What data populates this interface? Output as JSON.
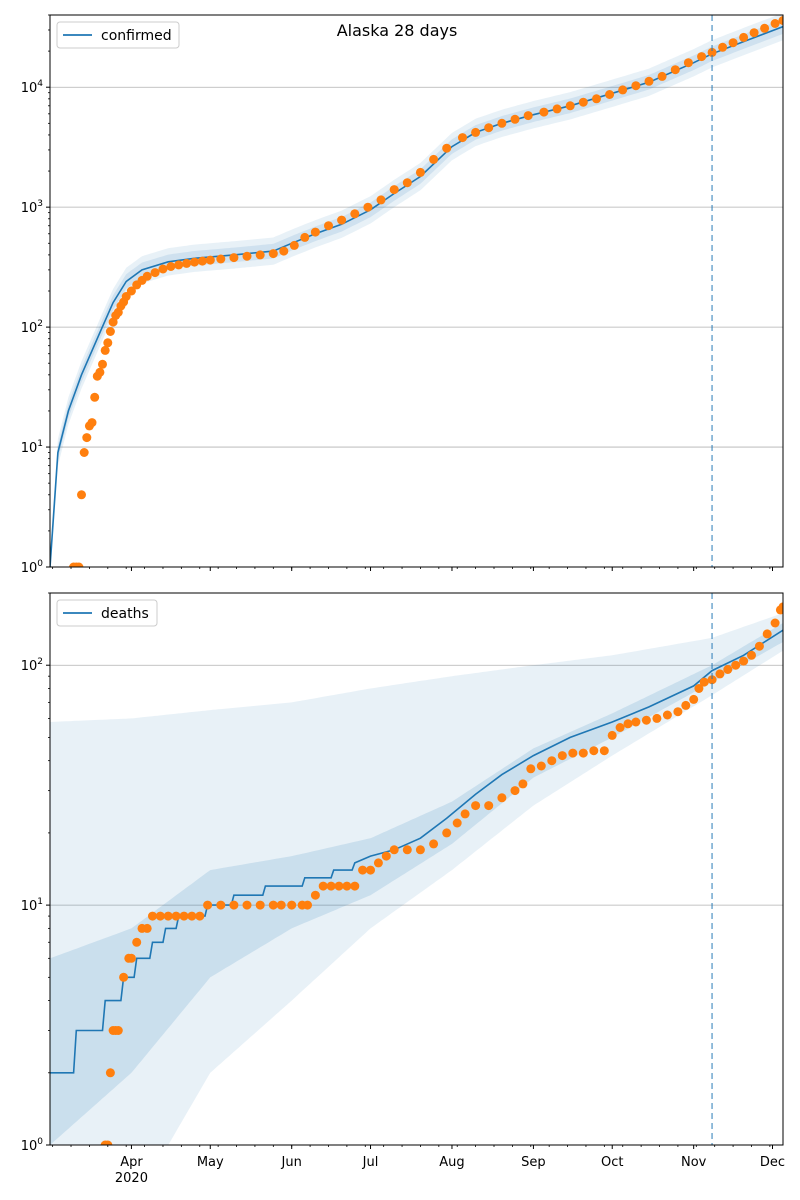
{
  "chart_data": [
    {
      "type": "scatter",
      "title": "Alaska 28 days",
      "legend": {
        "label": "confirmed",
        "placement": "top-left"
      },
      "yscale": "log",
      "ylim": [
        1,
        40000
      ],
      "xlim": [
        "2020-03-01",
        "2020-12-05"
      ],
      "grid": "y-major",
      "y_ticks": [
        {
          "v": 1,
          "b": "10",
          "e": "0"
        },
        {
          "v": 10,
          "b": "10",
          "e": "1"
        },
        {
          "v": 100,
          "b": "10",
          "e": "2"
        },
        {
          "v": 1000,
          "b": "10",
          "e": "3"
        },
        {
          "v": 10000,
          "b": "10",
          "e": "4"
        }
      ],
      "forecast_start": "2020-11-08",
      "model": {
        "median": [
          [
            "2020-03-01",
            1
          ],
          [
            "2020-03-04",
            9
          ],
          [
            "2020-03-08",
            20
          ],
          [
            "2020-03-13",
            40
          ],
          [
            "2020-03-20",
            90
          ],
          [
            "2020-03-25",
            160
          ],
          [
            "2020-03-30",
            240
          ],
          [
            "2020-04-05",
            300
          ],
          [
            "2020-04-15",
            350
          ],
          [
            "2020-04-25",
            375
          ],
          [
            "2020-05-10",
            400
          ],
          [
            "2020-05-25",
            430
          ],
          [
            "2020-06-01",
            500
          ],
          [
            "2020-06-10",
            600
          ],
          [
            "2020-06-20",
            720
          ],
          [
            "2020-07-01",
            950
          ],
          [
            "2020-07-10",
            1300
          ],
          [
            "2020-07-20",
            1800
          ],
          [
            "2020-08-01",
            3200
          ],
          [
            "2020-08-10",
            4200
          ],
          [
            "2020-08-20",
            5000
          ],
          [
            "2020-09-01",
            5900
          ],
          [
            "2020-09-15",
            7000
          ],
          [
            "2020-10-01",
            8900
          ],
          [
            "2020-10-15",
            11000
          ],
          [
            "2020-11-01",
            16000
          ],
          [
            "2020-11-08",
            19000
          ],
          [
            "2020-11-20",
            24000
          ],
          [
            "2020-12-05",
            32000
          ]
        ],
        "band_inner_factor": 1.15,
        "band_outer_factor": 1.3
      },
      "observed": [
        [
          "2020-03-10",
          1
        ],
        [
          "2020-03-11",
          1
        ],
        [
          "2020-03-12",
          1
        ],
        [
          "2020-03-13",
          4
        ],
        [
          "2020-03-14",
          9
        ],
        [
          "2020-03-15",
          12
        ],
        [
          "2020-03-16",
          15
        ],
        [
          "2020-03-17",
          16
        ],
        [
          "2020-03-18",
          26
        ],
        [
          "2020-03-19",
          39
        ],
        [
          "2020-03-20",
          42
        ],
        [
          "2020-03-21",
          49
        ],
        [
          "2020-03-22",
          64
        ],
        [
          "2020-03-23",
          74
        ],
        [
          "2020-03-24",
          92
        ],
        [
          "2020-03-25",
          110
        ],
        [
          "2020-03-26",
          125
        ],
        [
          "2020-03-27",
          133
        ],
        [
          "2020-03-28",
          150
        ],
        [
          "2020-03-29",
          162
        ],
        [
          "2020-03-30",
          180
        ],
        [
          "2020-04-01",
          200
        ],
        [
          "2020-04-03",
          225
        ],
        [
          "2020-04-05",
          245
        ],
        [
          "2020-04-07",
          265
        ],
        [
          "2020-04-10",
          285
        ],
        [
          "2020-04-13",
          305
        ],
        [
          "2020-04-16",
          320
        ],
        [
          "2020-04-19",
          330
        ],
        [
          "2020-04-22",
          340
        ],
        [
          "2020-04-25",
          348
        ],
        [
          "2020-04-28",
          355
        ],
        [
          "2020-05-01",
          362
        ],
        [
          "2020-05-05",
          370
        ],
        [
          "2020-05-10",
          380
        ],
        [
          "2020-05-15",
          390
        ],
        [
          "2020-05-20",
          400
        ],
        [
          "2020-05-25",
          410
        ],
        [
          "2020-05-29",
          430
        ],
        [
          "2020-06-02",
          480
        ],
        [
          "2020-06-06",
          560
        ],
        [
          "2020-06-10",
          620
        ],
        [
          "2020-06-15",
          700
        ],
        [
          "2020-06-20",
          780
        ],
        [
          "2020-06-25",
          880
        ],
        [
          "2020-06-30",
          1000
        ],
        [
          "2020-07-05",
          1150
        ],
        [
          "2020-07-10",
          1400
        ],
        [
          "2020-07-15",
          1600
        ],
        [
          "2020-07-20",
          1950
        ],
        [
          "2020-07-25",
          2500
        ],
        [
          "2020-07-30",
          3100
        ],
        [
          "2020-08-05",
          3800
        ],
        [
          "2020-08-10",
          4200
        ],
        [
          "2020-08-15",
          4600
        ],
        [
          "2020-08-20",
          5000
        ],
        [
          "2020-08-25",
          5400
        ],
        [
          "2020-08-30",
          5800
        ],
        [
          "2020-09-05",
          6200
        ],
        [
          "2020-09-10",
          6600
        ],
        [
          "2020-09-15",
          7000
        ],
        [
          "2020-09-20",
          7500
        ],
        [
          "2020-09-25",
          8000
        ],
        [
          "2020-09-30",
          8700
        ],
        [
          "2020-10-05",
          9500
        ],
        [
          "2020-10-10",
          10300
        ],
        [
          "2020-10-15",
          11200
        ],
        [
          "2020-10-20",
          12300
        ],
        [
          "2020-10-25",
          14000
        ],
        [
          "2020-10-30",
          16000
        ],
        [
          "2020-11-04",
          18000
        ],
        [
          "2020-11-08",
          19500
        ],
        [
          "2020-11-12",
          21500
        ],
        [
          "2020-11-16",
          23500
        ],
        [
          "2020-11-20",
          26000
        ],
        [
          "2020-11-24",
          28500
        ],
        [
          "2020-11-28",
          31000
        ],
        [
          "2020-12-02",
          34000
        ],
        [
          "2020-12-05",
          36000
        ]
      ]
    },
    {
      "type": "scatter",
      "legend": {
        "label": "deaths",
        "placement": "top-left"
      },
      "yscale": "log",
      "ylim": [
        1,
        200
      ],
      "xlim": [
        "2020-03-01",
        "2020-12-05"
      ],
      "grid": "y-major",
      "y_ticks": [
        {
          "v": 1,
          "b": "10",
          "e": "0"
        },
        {
          "v": 10,
          "b": "10",
          "e": "1"
        },
        {
          "v": 100,
          "b": "10",
          "e": "2"
        }
      ],
      "forecast_start": "2020-11-08",
      "model": {
        "median": [
          [
            "2020-03-01",
            2
          ],
          [
            "2020-03-10",
            2
          ],
          [
            "2020-03-11",
            3
          ],
          [
            "2020-03-21",
            3
          ],
          [
            "2020-03-22",
            4
          ],
          [
            "2020-03-28",
            4
          ],
          [
            "2020-03-29",
            5
          ],
          [
            "2020-04-02",
            5
          ],
          [
            "2020-04-03",
            6
          ],
          [
            "2020-04-08",
            6
          ],
          [
            "2020-04-09",
            7
          ],
          [
            "2020-04-13",
            7
          ],
          [
            "2020-04-14",
            8
          ],
          [
            "2020-04-18",
            8
          ],
          [
            "2020-04-19",
            9
          ],
          [
            "2020-04-29",
            9
          ],
          [
            "2020-04-30",
            10
          ],
          [
            "2020-05-09",
            10
          ],
          [
            "2020-05-10",
            11
          ],
          [
            "2020-05-21",
            11
          ],
          [
            "2020-05-22",
            12
          ],
          [
            "2020-06-05",
            12
          ],
          [
            "2020-06-06",
            13
          ],
          [
            "2020-06-16",
            13
          ],
          [
            "2020-06-17",
            14
          ],
          [
            "2020-06-24",
            14
          ],
          [
            "2020-06-25",
            15
          ],
          [
            "2020-07-01",
            16
          ],
          [
            "2020-07-10",
            17
          ],
          [
            "2020-07-20",
            19
          ],
          [
            "2020-07-30",
            23
          ],
          [
            "2020-08-10",
            29
          ],
          [
            "2020-08-20",
            35
          ],
          [
            "2020-09-01",
            42
          ],
          [
            "2020-09-15",
            50
          ],
          [
            "2020-10-01",
            58
          ],
          [
            "2020-10-15",
            67
          ],
          [
            "2020-11-01",
            82
          ],
          [
            "2020-11-08",
            95
          ],
          [
            "2020-11-20",
            110
          ],
          [
            "2020-12-05",
            140
          ]
        ],
        "band_inner_upper": [
          [
            "2020-03-01",
            6
          ],
          [
            "2020-04-01",
            8
          ],
          [
            "2020-05-01",
            14
          ],
          [
            "2020-06-01",
            16
          ],
          [
            "2020-07-01",
            19
          ],
          [
            "2020-08-01",
            27
          ],
          [
            "2020-09-01",
            45
          ],
          [
            "2020-10-01",
            63
          ],
          [
            "2020-11-08",
            100
          ],
          [
            "2020-12-05",
            150
          ]
        ],
        "band_inner_lower": [
          [
            "2020-03-01",
            1
          ],
          [
            "2020-04-01",
            2
          ],
          [
            "2020-05-01",
            5
          ],
          [
            "2020-06-01",
            8
          ],
          [
            "2020-07-01",
            11
          ],
          [
            "2020-08-01",
            18
          ],
          [
            "2020-09-01",
            34
          ],
          [
            "2020-10-01",
            50
          ],
          [
            "2020-11-08",
            85
          ],
          [
            "2020-12-05",
            125
          ]
        ],
        "band_outer_upper": [
          [
            "2020-03-01",
            58
          ],
          [
            "2020-04-01",
            60
          ],
          [
            "2020-05-01",
            65
          ],
          [
            "2020-06-01",
            70
          ],
          [
            "2020-07-01",
            80
          ],
          [
            "2020-08-01",
            90
          ],
          [
            "2020-09-01",
            100
          ],
          [
            "2020-10-01",
            110
          ],
          [
            "2020-11-08",
            130
          ],
          [
            "2020-12-05",
            165
          ]
        ],
        "band_outer_lower": [
          [
            "2020-03-01",
            1
          ],
          [
            "2020-04-15",
            1
          ],
          [
            "2020-05-01",
            2
          ],
          [
            "2020-06-01",
            4
          ],
          [
            "2020-07-01",
            8
          ],
          [
            "2020-08-01",
            14
          ],
          [
            "2020-09-01",
            26
          ],
          [
            "2020-10-01",
            42
          ],
          [
            "2020-11-08",
            75
          ],
          [
            "2020-12-05",
            115
          ]
        ]
      },
      "observed": [
        [
          "2020-03-22",
          1
        ],
        [
          "2020-03-23",
          1
        ],
        [
          "2020-03-24",
          2
        ],
        [
          "2020-03-25",
          3
        ],
        [
          "2020-03-26",
          3
        ],
        [
          "2020-03-27",
          3
        ],
        [
          "2020-03-29",
          5
        ],
        [
          "2020-03-31",
          6
        ],
        [
          "2020-04-01",
          6
        ],
        [
          "2020-04-03",
          7
        ],
        [
          "2020-04-05",
          8
        ],
        [
          "2020-04-07",
          8
        ],
        [
          "2020-04-09",
          9
        ],
        [
          "2020-04-12",
          9
        ],
        [
          "2020-04-15",
          9
        ],
        [
          "2020-04-18",
          9
        ],
        [
          "2020-04-21",
          9
        ],
        [
          "2020-04-24",
          9
        ],
        [
          "2020-04-27",
          9
        ],
        [
          "2020-04-30",
          10
        ],
        [
          "2020-05-05",
          10
        ],
        [
          "2020-05-10",
          10
        ],
        [
          "2020-05-15",
          10
        ],
        [
          "2020-05-20",
          10
        ],
        [
          "2020-05-25",
          10
        ],
        [
          "2020-05-28",
          10
        ],
        [
          "2020-06-01",
          10
        ],
        [
          "2020-06-05",
          10
        ],
        [
          "2020-06-07",
          10
        ],
        [
          "2020-06-10",
          11
        ],
        [
          "2020-06-13",
          12
        ],
        [
          "2020-06-16",
          12
        ],
        [
          "2020-06-19",
          12
        ],
        [
          "2020-06-22",
          12
        ],
        [
          "2020-06-25",
          12
        ],
        [
          "2020-06-28",
          14
        ],
        [
          "2020-07-01",
          14
        ],
        [
          "2020-07-04",
          15
        ],
        [
          "2020-07-07",
          16
        ],
        [
          "2020-07-10",
          17
        ],
        [
          "2020-07-15",
          17
        ],
        [
          "2020-07-20",
          17
        ],
        [
          "2020-07-25",
          18
        ],
        [
          "2020-07-30",
          20
        ],
        [
          "2020-08-03",
          22
        ],
        [
          "2020-08-06",
          24
        ],
        [
          "2020-08-10",
          26
        ],
        [
          "2020-08-15",
          26
        ],
        [
          "2020-08-20",
          28
        ],
        [
          "2020-08-25",
          30
        ],
        [
          "2020-08-28",
          32
        ],
        [
          "2020-08-31",
          37
        ],
        [
          "2020-09-04",
          38
        ],
        [
          "2020-09-08",
          40
        ],
        [
          "2020-09-12",
          42
        ],
        [
          "2020-09-16",
          43
        ],
        [
          "2020-09-20",
          43
        ],
        [
          "2020-09-24",
          44
        ],
        [
          "2020-09-28",
          44
        ],
        [
          "2020-10-01",
          51
        ],
        [
          "2020-10-04",
          55
        ],
        [
          "2020-10-07",
          57
        ],
        [
          "2020-10-10",
          58
        ],
        [
          "2020-10-14",
          59
        ],
        [
          "2020-10-18",
          60
        ],
        [
          "2020-10-22",
          62
        ],
        [
          "2020-10-26",
          64
        ],
        [
          "2020-10-29",
          68
        ],
        [
          "2020-11-01",
          72
        ],
        [
          "2020-11-03",
          80
        ],
        [
          "2020-11-05",
          85
        ],
        [
          "2020-11-08",
          87
        ],
        [
          "2020-11-11",
          92
        ],
        [
          "2020-11-14",
          96
        ],
        [
          "2020-11-17",
          100
        ],
        [
          "2020-11-20",
          104
        ],
        [
          "2020-11-23",
          110
        ],
        [
          "2020-11-26",
          120
        ],
        [
          "2020-11-29",
          135
        ],
        [
          "2020-12-02",
          150
        ],
        [
          "2020-12-04",
          170
        ],
        [
          "2020-12-05",
          175
        ]
      ]
    }
  ],
  "x_axis": {
    "labels": [
      {
        "date": "2020-04-01",
        "label": "Apr",
        "sub": "2020"
      },
      {
        "date": "2020-05-01",
        "label": "May"
      },
      {
        "date": "2020-06-01",
        "label": "Jun"
      },
      {
        "date": "2020-07-01",
        "label": "Jul"
      },
      {
        "date": "2020-08-01",
        "label": "Aug"
      },
      {
        "date": "2020-09-01",
        "label": "Sep"
      },
      {
        "date": "2020-10-01",
        "label": "Oct"
      },
      {
        "date": "2020-11-01",
        "label": "Nov"
      },
      {
        "date": "2020-12-01",
        "label": "Dec"
      }
    ]
  },
  "colors": {
    "model_line": "#1f77b4",
    "band": "#1f77b4",
    "observed": "#ff7f0e",
    "grid": "#b0b0b0",
    "forecast_line": "#1f77b4"
  }
}
